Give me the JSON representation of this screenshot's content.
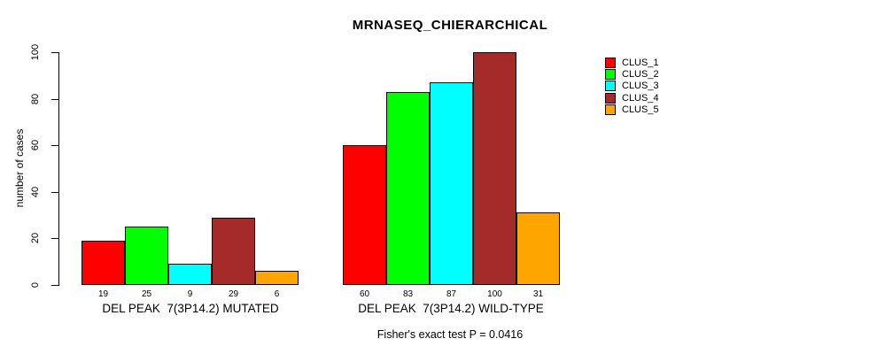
{
  "chart_data": {
    "type": "bar",
    "title": "MRNASEQ_CHIERARCHICAL",
    "ylabel": "number of cases",
    "ylim": [
      0,
      100
    ],
    "yticks": [
      0,
      20,
      40,
      60,
      80,
      100
    ],
    "grid": false,
    "legend_position": "right",
    "categories": [
      "DEL PEAK  7(3P14.2) MUTATED",
      "DEL PEAK  7(3P14.2) WILD-TYPE"
    ],
    "series": [
      {
        "name": "CLUS_1",
        "color": "#FF0000",
        "values": [
          19,
          60
        ]
      },
      {
        "name": "CLUS_2",
        "color": "#00FF00",
        "values": [
          25,
          83
        ]
      },
      {
        "name": "CLUS_3",
        "color": "#00FFFF",
        "values": [
          9,
          87
        ]
      },
      {
        "name": "CLUS_4",
        "color": "#A52A2A",
        "values": [
          29,
          100
        ]
      },
      {
        "name": "CLUS_5",
        "color": "#FFA500",
        "values": [
          6,
          31
        ]
      }
    ],
    "bar_value_labels_shown": true,
    "annotation": "Fisher's exact test P = 0.0416"
  }
}
